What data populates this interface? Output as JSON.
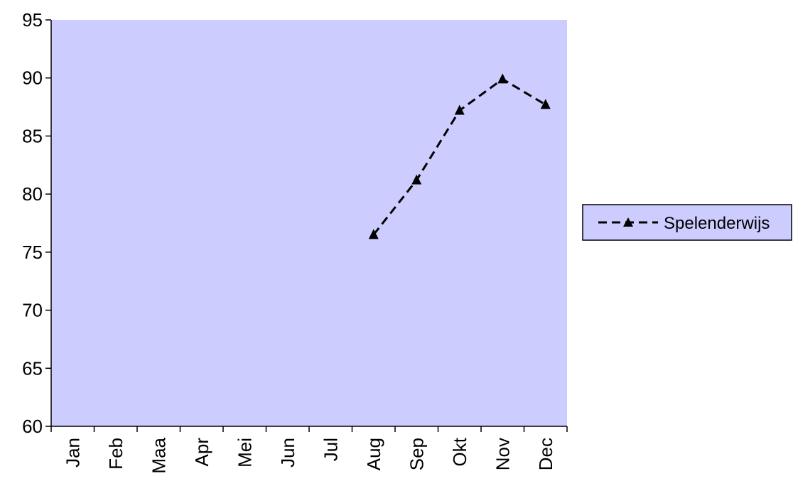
{
  "chart_data": {
    "type": "line",
    "categories": [
      "Jan",
      "Feb",
      "Maa",
      "Apr",
      "Mei",
      "Jun",
      "Jul",
      "Aug",
      "Sep",
      "Okt",
      "Nov",
      "Dec"
    ],
    "series": [
      {
        "name": "Spelenderwijs",
        "values": [
          null,
          null,
          null,
          null,
          null,
          null,
          null,
          76.5,
          81.2,
          87.2,
          89.9,
          87.7
        ],
        "line_style": "dashed",
        "marker": "triangle",
        "color": "#000000"
      }
    ],
    "yticks": [
      60,
      65,
      70,
      75,
      80,
      85,
      90,
      95
    ],
    "ylim": [
      60,
      95
    ],
    "plot_background": "#ccccff",
    "legend_position": "right",
    "grid": false
  }
}
